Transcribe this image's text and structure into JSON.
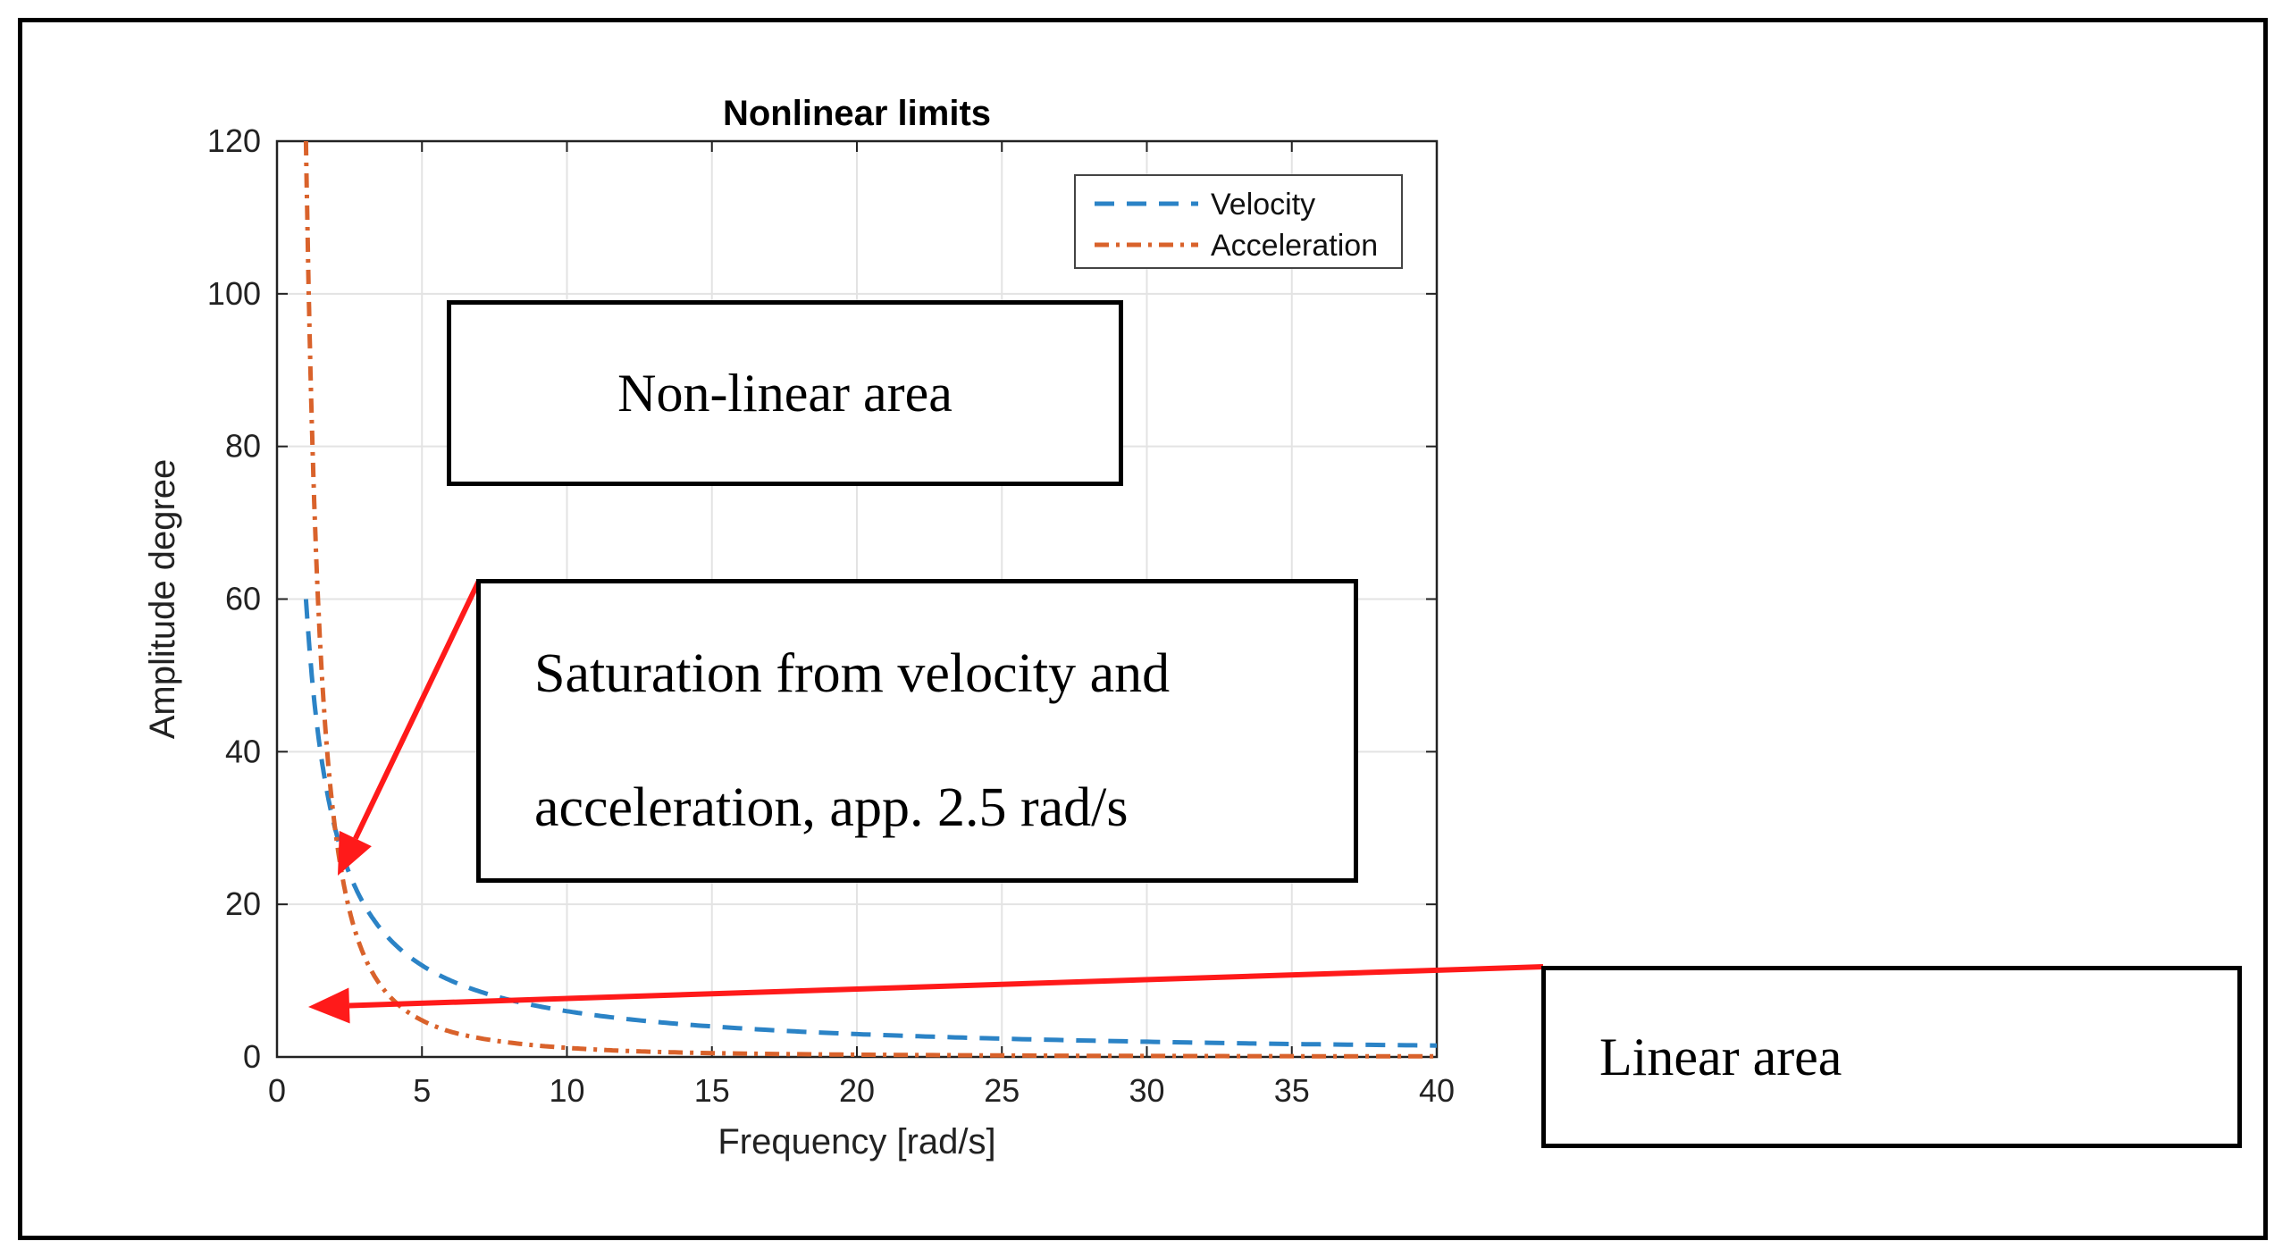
{
  "chart_data": {
    "type": "line",
    "title": "Nonlinear limits",
    "xlabel": "Frequency [rad/s]",
    "ylabel": "Amplitude degree",
    "xlim": [
      0,
      40
    ],
    "ylim": [
      0,
      120
    ],
    "xticks": [
      0,
      5,
      10,
      15,
      20,
      25,
      30,
      35,
      40
    ],
    "yticks": [
      0,
      20,
      40,
      60,
      80,
      100,
      120
    ],
    "grid": true,
    "legend_position": "top-right",
    "series": [
      {
        "name": "Velocity",
        "color": "#2b83c6",
        "style": "dashed",
        "x": [
          1,
          1.5,
          2,
          2.5,
          3,
          4,
          5,
          6,
          8,
          10,
          12,
          15,
          20,
          25,
          30,
          35,
          40
        ],
        "y": [
          60,
          40,
          30,
          24,
          20,
          15,
          12,
          10,
          7.5,
          6,
          5,
          4,
          3,
          2.4,
          2,
          1.7,
          1.5
        ]
      },
      {
        "name": "Acceleration",
        "color": "#d9622b",
        "style": "dashdot",
        "x": [
          1,
          1.2,
          1.5,
          2,
          2.5,
          3,
          4,
          5,
          6,
          8,
          10,
          12,
          15,
          20,
          25,
          30,
          35,
          40
        ],
        "y": [
          120,
          83.3,
          53.3,
          30,
          19.2,
          13.3,
          7.5,
          4.8,
          3.3,
          1.9,
          1.2,
          0.8,
          0.5,
          0.3,
          0.2,
          0.13,
          0.1,
          0.08
        ]
      }
    ]
  },
  "annotations": {
    "nonlinear_area": "Non-linear  area",
    "saturation_line1": "Saturation from velocity and",
    "saturation_line2": "acceleration, app. 2.5 rad/s",
    "linear_area": "Linear area",
    "arrow_color": "#ff1a1a"
  }
}
